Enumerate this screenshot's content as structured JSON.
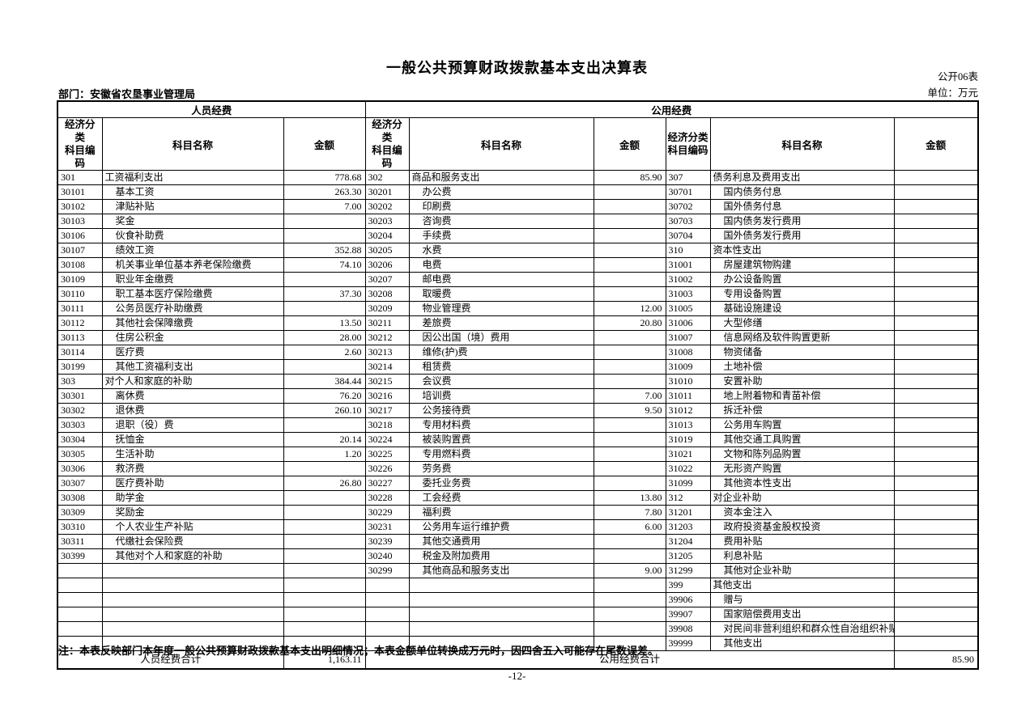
{
  "page": {
    "title": "一般公共预算财政拨款基本支出决算表",
    "form_code": "公开06表",
    "unit_label": "单位：万元",
    "department_label": "部门：安徽省农垦事业管理局",
    "note": "注：本表反映部门本年度一般公共预算财政拨款基本支出明细情况；本表金额单位转换成万元时，因四舍五入可能存在尾数误差。",
    "page_number": "-12-"
  },
  "table": {
    "group_headers": {
      "personnel": "人员经费",
      "public": "公用经费"
    },
    "column_headers": {
      "code": "经济分类\n科目编码",
      "name": "科目名称",
      "amount": "金额"
    },
    "personnel_rows": [
      [
        "301",
        "工资福利支出",
        "778.68"
      ],
      [
        "30101",
        "基本工资",
        "263.30"
      ],
      [
        "30102",
        "津贴补贴",
        "7.00"
      ],
      [
        "30103",
        "奖金",
        ""
      ],
      [
        "30106",
        "伙食补助费",
        ""
      ],
      [
        "30107",
        "绩效工资",
        "352.88"
      ],
      [
        "30108",
        "机关事业单位基本养老保险缴费",
        "74.10"
      ],
      [
        "30109",
        "职业年金缴费",
        ""
      ],
      [
        "30110",
        "职工基本医疗保险缴费",
        "37.30"
      ],
      [
        "30111",
        "公务员医疗补助缴费",
        ""
      ],
      [
        "30112",
        "其他社会保障缴费",
        "13.50"
      ],
      [
        "30113",
        "住房公积金",
        "28.00"
      ],
      [
        "30114",
        "医疗费",
        "2.60"
      ],
      [
        "30199",
        "其他工资福利支出",
        ""
      ],
      [
        "303",
        "对个人和家庭的补助",
        "384.44"
      ],
      [
        "30301",
        "离休费",
        "76.20"
      ],
      [
        "30302",
        "退休费",
        "260.10"
      ],
      [
        "30303",
        "退职（役）费",
        ""
      ],
      [
        "30304",
        "抚恤金",
        "20.14"
      ],
      [
        "30305",
        "生活补助",
        "1.20"
      ],
      [
        "30306",
        "救济费",
        ""
      ],
      [
        "30307",
        "医疗费补助",
        "26.80"
      ],
      [
        "30308",
        "助学金",
        ""
      ],
      [
        "30309",
        "奖励金",
        ""
      ],
      [
        "30310",
        "个人农业生产补贴",
        ""
      ],
      [
        "30311",
        "代缴社会保险费",
        ""
      ],
      [
        "30399",
        "其他对个人和家庭的补助",
        ""
      ],
      [
        "",
        "",
        ""
      ],
      [
        "",
        "",
        ""
      ],
      [
        "",
        "",
        ""
      ],
      [
        "",
        "",
        ""
      ],
      [
        "",
        "",
        ""
      ],
      [
        "",
        "",
        ""
      ]
    ],
    "public_a_rows": [
      [
        "302",
        "商品和服务支出",
        "85.90"
      ],
      [
        "30201",
        "办公费",
        ""
      ],
      [
        "30202",
        "印刷费",
        ""
      ],
      [
        "30203",
        "咨询费",
        ""
      ],
      [
        "30204",
        "手续费",
        ""
      ],
      [
        "30205",
        "水费",
        ""
      ],
      [
        "30206",
        "电费",
        ""
      ],
      [
        "30207",
        "邮电费",
        ""
      ],
      [
        "30208",
        "取暖费",
        ""
      ],
      [
        "30209",
        "物业管理费",
        "12.00"
      ],
      [
        "30211",
        "差旅费",
        "20.80"
      ],
      [
        "30212",
        "因公出国（境）费用",
        ""
      ],
      [
        "30213",
        "维修(护)费",
        ""
      ],
      [
        "30214",
        "租赁费",
        ""
      ],
      [
        "30215",
        "会议费",
        ""
      ],
      [
        "30216",
        "培训费",
        "7.00"
      ],
      [
        "30217",
        "公务接待费",
        "9.50"
      ],
      [
        "30218",
        "专用材料费",
        ""
      ],
      [
        "30224",
        "被装购置费",
        ""
      ],
      [
        "30225",
        "专用燃料费",
        ""
      ],
      [
        "30226",
        "劳务费",
        ""
      ],
      [
        "30227",
        "委托业务费",
        ""
      ],
      [
        "30228",
        "工会经费",
        "13.80"
      ],
      [
        "30229",
        "福利费",
        "7.80"
      ],
      [
        "30231",
        "公务用车运行维护费",
        "6.00"
      ],
      [
        "30239",
        "其他交通费用",
        ""
      ],
      [
        "30240",
        "税金及附加费用",
        ""
      ],
      [
        "30299",
        "其他商品和服务支出",
        "9.00"
      ],
      [
        "",
        "",
        ""
      ],
      [
        "",
        "",
        ""
      ],
      [
        "",
        "",
        ""
      ],
      [
        "",
        "",
        ""
      ],
      [
        "",
        "",
        ""
      ]
    ],
    "public_b_rows": [
      [
        "307",
        "债务利息及费用支出",
        ""
      ],
      [
        "30701",
        "国内债务付息",
        ""
      ],
      [
        "30702",
        "国外债务付息",
        ""
      ],
      [
        "30703",
        "国内债务发行费用",
        ""
      ],
      [
        "30704",
        "国外债务发行费用",
        ""
      ],
      [
        "310",
        "资本性支出",
        ""
      ],
      [
        "31001",
        "房屋建筑物购建",
        ""
      ],
      [
        "31002",
        "办公设备购置",
        ""
      ],
      [
        "31003",
        "专用设备购置",
        ""
      ],
      [
        "31005",
        "基础设施建设",
        ""
      ],
      [
        "31006",
        "大型修缮",
        ""
      ],
      [
        "31007",
        "信息网络及软件购置更新",
        ""
      ],
      [
        "31008",
        "物资储备",
        ""
      ],
      [
        "31009",
        "土地补偿",
        ""
      ],
      [
        "31010",
        "安置补助",
        ""
      ],
      [
        "31011",
        "地上附着物和青苗补偿",
        ""
      ],
      [
        "31012",
        "拆迁补偿",
        ""
      ],
      [
        "31013",
        "公务用车购置",
        ""
      ],
      [
        "31019",
        "其他交通工具购置",
        ""
      ],
      [
        "31021",
        "文物和陈列品购置",
        ""
      ],
      [
        "31022",
        "无形资产购置",
        ""
      ],
      [
        "31099",
        "其他资本性支出",
        ""
      ],
      [
        "312",
        "对企业补助",
        ""
      ],
      [
        "31201",
        "资本金注入",
        ""
      ],
      [
        "31203",
        "政府投资基金股权投资",
        ""
      ],
      [
        "31204",
        "费用补贴",
        ""
      ],
      [
        "31205",
        "利息补贴",
        ""
      ],
      [
        "31299",
        "其他对企业补助",
        ""
      ],
      [
        "399",
        "其他支出",
        ""
      ],
      [
        "39906",
        "赠与",
        ""
      ],
      [
        "39907",
        "国家赔偿费用支出",
        ""
      ],
      [
        "39908",
        "对民间非营利组织和群众性自治组织补贴",
        ""
      ],
      [
        "39999",
        "其他支出",
        ""
      ]
    ],
    "personnel_total_label": "人员经费合计",
    "personnel_total_amount": "1,163.11",
    "public_total_label": "公用经费合计",
    "public_total_amount": "85.90"
  }
}
